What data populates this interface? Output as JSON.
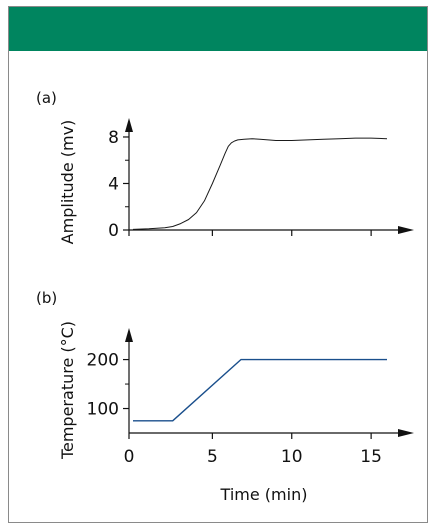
{
  "colors": {
    "header_band": "#00855f",
    "axis": "#111111",
    "series_a": "#1a1a1a",
    "series_b": "#1a4f8c"
  },
  "chart_data": [
    {
      "type": "line",
      "panel_label": "(a)",
      "xlabel": "",
      "ylabel": "Amplitude (mv)",
      "xlim": [
        0,
        16
      ],
      "ylim": [
        0,
        8.6
      ],
      "yticks": [
        0,
        4,
        8
      ],
      "yminor": [
        2,
        6
      ],
      "xticks": [
        0,
        5,
        10,
        15
      ],
      "show_xtick_labels": false,
      "grid": false,
      "series": [
        {
          "x": [
            0,
            1,
            2,
            2.5,
            3,
            3.5,
            4,
            4.5,
            5,
            5.5,
            5.8,
            6,
            6.2,
            6.4,
            6.6,
            7,
            7.5,
            8,
            9,
            10,
            11,
            12,
            13,
            14,
            15,
            16
          ],
          "values": [
            0.05,
            0.1,
            0.2,
            0.3,
            0.55,
            0.9,
            1.5,
            2.5,
            4.0,
            5.6,
            6.6,
            7.2,
            7.5,
            7.65,
            7.75,
            7.8,
            7.85,
            7.8,
            7.7,
            7.7,
            7.75,
            7.8,
            7.85,
            7.9,
            7.9,
            7.85
          ]
        }
      ]
    },
    {
      "type": "line",
      "panel_label": "(b)",
      "xlabel": "Time (min)",
      "ylabel": "Temperature (°C)",
      "xlim": [
        0,
        16
      ],
      "ylim": [
        50,
        240
      ],
      "yticks": [
        100,
        200
      ],
      "yminor": [
        150
      ],
      "xticks": [
        0,
        5,
        10,
        15
      ],
      "show_xtick_labels": true,
      "grid": false,
      "series": [
        {
          "x": [
            0,
            2.5,
            6.8,
            16
          ],
          "values": [
            75,
            75,
            200,
            200
          ]
        }
      ]
    }
  ]
}
